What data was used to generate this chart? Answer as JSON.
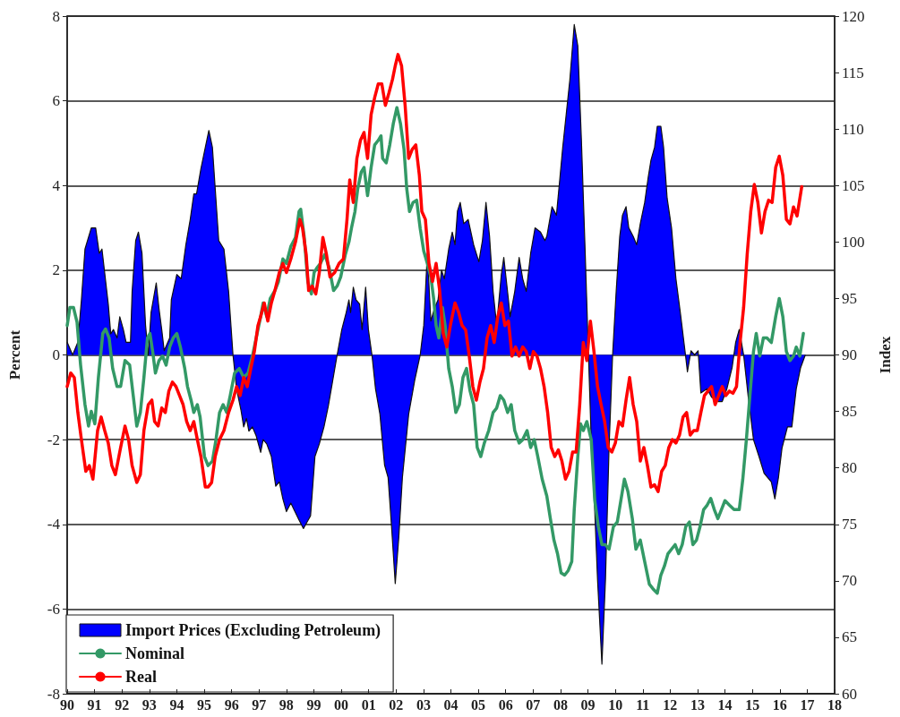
{
  "chart_data": {
    "type": "line",
    "ylabel": "Percent",
    "y2label": "Index",
    "xlim": [
      1990,
      2018
    ],
    "xticks": [
      {
        "value": 1990,
        "label": "90"
      },
      {
        "value": 1991,
        "label": "91"
      },
      {
        "value": 1992,
        "label": "92"
      },
      {
        "value": 1993,
        "label": "93"
      },
      {
        "value": 1994,
        "label": "94"
      },
      {
        "value": 1995,
        "label": "95"
      },
      {
        "value": 1996,
        "label": "96"
      },
      {
        "value": 1997,
        "label": "97"
      },
      {
        "value": 1998,
        "label": "98"
      },
      {
        "value": 1999,
        "label": "99"
      },
      {
        "value": 2000,
        "label": "00"
      },
      {
        "value": 2001,
        "label": "01"
      },
      {
        "value": 2002,
        "label": "02"
      },
      {
        "value": 2003,
        "label": "03"
      },
      {
        "value": 2004,
        "label": "04"
      },
      {
        "value": 2005,
        "label": "05"
      },
      {
        "value": 2006,
        "label": "06"
      },
      {
        "value": 2007,
        "label": "07"
      },
      {
        "value": 2008,
        "label": "08"
      },
      {
        "value": 2009,
        "label": "09"
      },
      {
        "value": 2010,
        "label": "10"
      },
      {
        "value": 2011,
        "label": "11"
      },
      {
        "value": 2012,
        "label": "12"
      },
      {
        "value": 2013,
        "label": "13"
      },
      {
        "value": 2014,
        "label": "14"
      },
      {
        "value": 2015,
        "label": "15"
      },
      {
        "value": 2016,
        "label": "16"
      },
      {
        "value": 2017,
        "label": "17"
      },
      {
        "value": 2018,
        "label": "18"
      }
    ],
    "ylim": [
      -8,
      8
    ],
    "yticks": [
      -8,
      -6,
      -4,
      -2,
      0,
      2,
      4,
      6,
      8
    ],
    "y2lim": [
      60,
      120
    ],
    "y2ticks": [
      60,
      65,
      70,
      75,
      80,
      85,
      90,
      95,
      100,
      105,
      110,
      115,
      120
    ],
    "grid": "y",
    "legend": "bottom left",
    "marker": "none",
    "line_style": "solid",
    "series": [
      {
        "name": "Import Prices (Excluding Petroleum)",
        "type": "area",
        "color": "#0000ff",
        "axis": "y",
        "x": [
          1990.0,
          1990.2,
          1990.39,
          1990.52,
          1990.65,
          1990.88,
          1991.04,
          1991.17,
          1991.27,
          1991.5,
          1991.59,
          1991.69,
          1991.82,
          1991.92,
          1992.05,
          1992.15,
          1992.31,
          1992.37,
          1992.5,
          1992.6,
          1992.73,
          1992.86,
          1992.96,
          1993.06,
          1993.25,
          1993.35,
          1993.45,
          1993.54,
          1993.74,
          1993.8,
          1994.0,
          1994.16,
          1994.33,
          1994.49,
          1994.62,
          1994.72,
          1994.88,
          1995.04,
          1995.17,
          1995.3,
          1995.53,
          1995.72,
          1995.89,
          1996.05,
          1996.18,
          1996.34,
          1996.44,
          1996.54,
          1996.63,
          1996.76,
          1996.89,
          1997.06,
          1997.15,
          1997.28,
          1997.45,
          1997.61,
          1997.74,
          1997.87,
          1998.0,
          1998.16,
          1998.46,
          1998.62,
          1998.88,
          1999.04,
          1999.2,
          1999.37,
          1999.53,
          1999.69,
          1999.85,
          2000.02,
          2000.18,
          2000.28,
          2000.34,
          2000.44,
          2000.54,
          2000.67,
          2000.76,
          2000.89,
          2000.99,
          2001.12,
          2001.25,
          2001.41,
          2001.58,
          2001.71,
          2001.84,
          2001.97,
          2002.1,
          2002.23,
          2002.46,
          2002.68,
          2002.88,
          2003.01,
          2003.14,
          2003.27,
          2003.4,
          2003.53,
          2003.66,
          2003.76,
          2003.92,
          2004.05,
          2004.15,
          2004.24,
          2004.34,
          2004.47,
          2004.63,
          2004.83,
          2005.02,
          2005.15,
          2005.28,
          2005.41,
          2005.54,
          2005.67,
          2005.84,
          2005.93,
          2006.1,
          2006.16,
          2006.33,
          2006.49,
          2006.62,
          2006.75,
          2006.91,
          2007.07,
          2007.27,
          2007.43,
          2007.5,
          2007.69,
          2007.85,
          2007.98,
          2008.08,
          2008.21,
          2008.34,
          2008.5,
          2008.63,
          2008.76,
          2008.89,
          2009.02,
          2009.12,
          2009.25,
          2009.35,
          2009.51,
          2009.64,
          2009.77,
          2009.9,
          2010.03,
          2010.16,
          2010.26,
          2010.39,
          2010.49,
          2010.65,
          2010.78,
          2010.91,
          2011.07,
          2011.2,
          2011.3,
          2011.43,
          2011.53,
          2011.66,
          2011.76,
          2011.89,
          2012.05,
          2012.21,
          2012.37,
          2012.54,
          2012.63,
          2012.76,
          2012.89,
          2013.02,
          2013.12,
          2013.35,
          2013.51,
          2013.74,
          2013.9,
          2014.07,
          2014.26,
          2014.39,
          2014.52,
          2014.68,
          2014.85,
          2015.04,
          2015.24,
          2015.43,
          2015.56,
          2015.69,
          2015.82,
          2015.95,
          2016.08,
          2016.28,
          2016.44,
          2016.6,
          2016.76,
          2016.93
        ],
        "values": [
          0.3,
          0,
          0.3,
          1.3,
          2.5,
          3.0,
          3.0,
          2.4,
          2.5,
          1.2,
          0.5,
          0.6,
          0.4,
          0.9,
          0.6,
          0.3,
          0.3,
          1.5,
          2.7,
          2.9,
          2.4,
          0.7,
          0,
          1.0,
          1.7,
          1.1,
          0.6,
          0.1,
          0.4,
          1.3,
          1.9,
          1.8,
          2.6,
          3.2,
          3.8,
          3.8,
          4.4,
          4.9,
          5.3,
          4.9,
          2.7,
          2.5,
          1.5,
          0,
          -0.8,
          -1.3,
          -1.7,
          -1.5,
          -1.8,
          -1.7,
          -1.9,
          -2.3,
          -2.0,
          -2.1,
          -2.4,
          -3.1,
          -3.0,
          -3.4,
          -3.7,
          -3.5,
          -3.9,
          -4.1,
          -3.8,
          -2.4,
          -2.1,
          -1.7,
          -1.2,
          -0.6,
          0,
          0.6,
          1.0,
          1.3,
          1.0,
          1.6,
          1.3,
          1.2,
          0.6,
          1.6,
          0.6,
          0,
          -0.8,
          -1.4,
          -2.6,
          -2.9,
          -4.1,
          -5.4,
          -4.3,
          -2.9,
          -1.4,
          -0.6,
          0,
          0.7,
          2.4,
          0.8,
          1.1,
          1.3,
          2.0,
          1.8,
          2.5,
          2.9,
          2.6,
          3.4,
          3.6,
          3.1,
          3.2,
          2.6,
          2.2,
          2.7,
          3.6,
          2.8,
          1.5,
          0.7,
          1.9,
          2.3,
          1.3,
          0.9,
          1.5,
          2.3,
          1.8,
          1.5,
          2.4,
          3.0,
          2.9,
          2.7,
          2.8,
          3.5,
          3.3,
          4.2,
          4.9,
          5.7,
          6.5,
          7.8,
          7.3,
          5.1,
          2.6,
          0,
          -2.0,
          -3.7,
          -5.3,
          -7.3,
          -5.3,
          -2.2,
          0,
          1.5,
          2.8,
          3.3,
          3.5,
          3.0,
          2.8,
          2.6,
          3.1,
          3.6,
          4.2,
          4.6,
          4.9,
          5.4,
          5.4,
          4.9,
          3.7,
          3.0,
          1.8,
          1.0,
          0.1,
          -0.4,
          0.1,
          0,
          0.1,
          -0.9,
          -0.8,
          -1.0,
          -1.1,
          -1.1,
          -0.8,
          -0.3,
          0.3,
          0.6,
          0,
          -1.0,
          -2.0,
          -2.4,
          -2.8,
          -2.9,
          -3.0,
          -3.4,
          -2.9,
          -2.2,
          -1.7,
          -1.7,
          -0.8,
          -0.3,
          0
        ]
      },
      {
        "name": "Nominal",
        "type": "line",
        "color": "#339966",
        "axis": "y2",
        "x": [
          1990.0,
          1990.1,
          1990.23,
          1990.36,
          1990.49,
          1990.65,
          1990.78,
          1990.88,
          1991.01,
          1991.14,
          1991.3,
          1991.4,
          1991.53,
          1991.66,
          1991.82,
          1991.95,
          1992.11,
          1992.28,
          1992.41,
          1992.54,
          1992.67,
          1992.8,
          1992.93,
          1993.02,
          1993.12,
          1993.22,
          1993.35,
          1993.48,
          1993.61,
          1993.74,
          1993.87,
          1994.0,
          1994.13,
          1994.29,
          1994.39,
          1994.52,
          1994.62,
          1994.75,
          1994.85,
          1995.01,
          1995.14,
          1995.3,
          1995.43,
          1995.56,
          1995.69,
          1995.82,
          1995.95,
          1996.11,
          1996.28,
          1996.44,
          1996.6,
          1996.76,
          1996.93,
          1997.06,
          1997.15,
          1997.28,
          1997.41,
          1997.58,
          1997.71,
          1997.87,
          1998.0,
          1998.16,
          1998.33,
          1998.46,
          1998.52,
          1998.65,
          1998.78,
          1998.91,
          1999.01,
          1999.11,
          1999.24,
          1999.4,
          1999.56,
          1999.72,
          1999.85,
          1999.98,
          2000.15,
          2000.28,
          2000.37,
          2000.5,
          2000.6,
          2000.73,
          2000.83,
          2000.96,
          2001.09,
          2001.22,
          2001.35,
          2001.45,
          2001.51,
          2001.64,
          2001.77,
          2001.9,
          2002.03,
          2002.16,
          2002.29,
          2002.39,
          2002.49,
          2002.62,
          2002.75,
          2002.88,
          2003.01,
          2003.14,
          2003.27,
          2003.37,
          2003.46,
          2003.56,
          2003.69,
          2003.79,
          2003.92,
          2004.05,
          2004.18,
          2004.31,
          2004.44,
          2004.57,
          2004.7,
          2004.83,
          2004.96,
          2005.09,
          2005.22,
          2005.38,
          2005.54,
          2005.67,
          2005.8,
          2005.93,
          2006.07,
          2006.2,
          2006.33,
          2006.49,
          2006.62,
          2006.78,
          2006.91,
          2007.04,
          2007.17,
          2007.33,
          2007.5,
          2007.63,
          2007.76,
          2007.89,
          2008.02,
          2008.15,
          2008.28,
          2008.41,
          2008.5,
          2008.63,
          2008.73,
          2008.83,
          2008.96,
          2009.12,
          2009.25,
          2009.38,
          2009.51,
          2009.64,
          2009.77,
          2009.93,
          2010.07,
          2010.2,
          2010.33,
          2010.46,
          2010.62,
          2010.75,
          2010.91,
          2011.07,
          2011.24,
          2011.37,
          2011.53,
          2011.66,
          2011.79,
          2011.92,
          2012.05,
          2012.18,
          2012.31,
          2012.44,
          2012.57,
          2012.7,
          2012.83,
          2012.96,
          2013.09,
          2013.22,
          2013.35,
          2013.48,
          2013.61,
          2013.74,
          2013.87,
          2014.0,
          2014.16,
          2014.33,
          2014.52,
          2014.65,
          2014.78,
          2014.91,
          2015.04,
          2015.14,
          2015.27,
          2015.4,
          2015.53,
          2015.69,
          2015.85,
          2015.98,
          2016.11,
          2016.24,
          2016.37,
          2016.5,
          2016.6,
          2016.73,
          2016.86
        ],
        "values": [
          92.6,
          94.2,
          94.2,
          92.9,
          89.1,
          85.6,
          83.7,
          85.0,
          83.9,
          88.0,
          91.9,
          92.3,
          91.5,
          88.8,
          87.2,
          87.2,
          89.5,
          89.1,
          86.4,
          83.7,
          84.9,
          88.0,
          91.5,
          91.9,
          90.3,
          88.4,
          89.5,
          89.9,
          89.1,
          90.7,
          91.5,
          91.9,
          90.7,
          88.8,
          87.2,
          86.0,
          84.9,
          85.6,
          84.5,
          81.0,
          80.2,
          80.6,
          82.5,
          84.9,
          85.6,
          84.9,
          86.4,
          88.4,
          88.8,
          88.0,
          88.4,
          89.9,
          91.9,
          93.4,
          94.6,
          93.4,
          95.0,
          95.7,
          96.5,
          98.5,
          98.1,
          99.6,
          100.4,
          102.7,
          102.9,
          100.4,
          96.5,
          95.4,
          97.3,
          97.7,
          98.1,
          98.9,
          97.7,
          95.7,
          96.1,
          96.9,
          98.9,
          100.0,
          101.2,
          102.7,
          104.7,
          106.2,
          106.6,
          104.1,
          106.6,
          108.6,
          109.0,
          109.4,
          107.4,
          107.0,
          108.6,
          110.5,
          111.9,
          110.5,
          108.2,
          104.7,
          102.7,
          103.5,
          103.7,
          101.2,
          99.2,
          98.1,
          96.9,
          95.0,
          92.6,
          91.5,
          94.2,
          92.6,
          88.8,
          87.2,
          84.9,
          85.6,
          88.0,
          88.8,
          86.8,
          85.6,
          81.8,
          81.0,
          82.2,
          83.3,
          84.9,
          85.3,
          86.4,
          86.0,
          84.9,
          85.6,
          83.3,
          82.2,
          82.5,
          83.3,
          81.8,
          82.5,
          81.0,
          79.0,
          77.5,
          75.5,
          73.6,
          72.4,
          70.7,
          70.5,
          70.9,
          71.7,
          76.3,
          81.0,
          83.9,
          83.3,
          84.1,
          82.5,
          77.1,
          74.8,
          73.2,
          73.2,
          72.8,
          74.8,
          75.2,
          77.1,
          79.0,
          77.9,
          75.5,
          72.8,
          73.6,
          71.7,
          69.7,
          69.3,
          68.9,
          70.5,
          71.3,
          72.4,
          72.8,
          73.2,
          72.4,
          73.2,
          74.8,
          75.2,
          73.2,
          73.6,
          74.8,
          76.3,
          76.7,
          77.3,
          76.3,
          75.5,
          76.3,
          77.1,
          76.7,
          76.3,
          76.3,
          79.0,
          82.5,
          86.4,
          90.3,
          91.9,
          89.9,
          91.5,
          91.5,
          91.1,
          93.4,
          95.0,
          93.4,
          90.3,
          89.5,
          89.9,
          90.7,
          89.9,
          91.9
        ]
      },
      {
        "name": "Real",
        "type": "line",
        "color": "#ff0000",
        "axis": "y2",
        "x": [
          1990.0,
          1990.13,
          1990.26,
          1990.39,
          1990.52,
          1990.68,
          1990.81,
          1990.94,
          1991.11,
          1991.24,
          1991.37,
          1991.5,
          1991.63,
          1991.76,
          1991.95,
          1992.11,
          1992.24,
          1992.37,
          1992.54,
          1992.67,
          1992.8,
          1992.96,
          1993.09,
          1993.19,
          1993.32,
          1993.45,
          1993.58,
          1993.71,
          1993.84,
          1993.97,
          1994.1,
          1994.23,
          1994.36,
          1994.49,
          1994.62,
          1994.75,
          1994.88,
          1995.04,
          1995.14,
          1995.27,
          1995.4,
          1995.56,
          1995.72,
          1995.89,
          1996.05,
          1996.18,
          1996.31,
          1996.44,
          1996.57,
          1996.7,
          1996.83,
          1996.96,
          1997.06,
          1997.19,
          1997.32,
          1997.45,
          1997.58,
          1997.74,
          1997.87,
          1998.0,
          1998.16,
          1998.33,
          1998.49,
          1998.59,
          1998.72,
          1998.81,
          1998.94,
          1999.07,
          1999.2,
          1999.33,
          1999.46,
          1999.59,
          1999.76,
          1999.92,
          2000.08,
          2000.21,
          2000.31,
          2000.44,
          2000.57,
          2000.7,
          2000.83,
          2000.96,
          2001.09,
          2001.22,
          2001.35,
          2001.48,
          2001.61,
          2001.74,
          2001.87,
          2001.97,
          2002.07,
          2002.2,
          2002.33,
          2002.46,
          2002.59,
          2002.72,
          2002.85,
          2002.94,
          2003.07,
          2003.2,
          2003.33,
          2003.46,
          2003.59,
          2003.72,
          2003.85,
          2003.98,
          2004.15,
          2004.28,
          2004.41,
          2004.54,
          2004.67,
          2004.8,
          2004.93,
          2005.06,
          2005.19,
          2005.32,
          2005.45,
          2005.58,
          2005.71,
          2005.84,
          2005.97,
          2006.1,
          2006.23,
          2006.36,
          2006.49,
          2006.62,
          2006.75,
          2006.88,
          2007.01,
          2007.14,
          2007.27,
          2007.4,
          2007.53,
          2007.66,
          2007.79,
          2007.92,
          2008.05,
          2008.18,
          2008.31,
          2008.44,
          2008.57,
          2008.7,
          2008.83,
          2008.96,
          2009.09,
          2009.22,
          2009.35,
          2009.48,
          2009.61,
          2009.74,
          2009.87,
          2010.0,
          2010.13,
          2010.26,
          2010.39,
          2010.52,
          2010.65,
          2010.78,
          2010.91,
          2011.04,
          2011.17,
          2011.3,
          2011.43,
          2011.56,
          2011.69,
          2011.82,
          2011.95,
          2012.08,
          2012.21,
          2012.34,
          2012.47,
          2012.6,
          2012.73,
          2012.86,
          2012.99,
          2013.12,
          2013.25,
          2013.38,
          2013.51,
          2013.64,
          2013.77,
          2013.9,
          2014.03,
          2014.16,
          2014.29,
          2014.42,
          2014.55,
          2014.68,
          2014.81,
          2014.94,
          2015.07,
          2015.2,
          2015.33,
          2015.46,
          2015.59,
          2015.72,
          2015.85,
          2015.98,
          2016.11,
          2016.24,
          2016.37,
          2016.5,
          2016.63,
          2016.8
        ],
        "values": [
          87.2,
          88.4,
          88.0,
          84.9,
          82.5,
          79.7,
          80.2,
          79.0,
          83.3,
          84.5,
          83.3,
          82.2,
          80.2,
          79.4,
          81.8,
          83.7,
          82.5,
          80.2,
          78.7,
          79.4,
          83.3,
          85.6,
          86.0,
          84.1,
          83.7,
          85.3,
          84.9,
          86.8,
          87.6,
          87.2,
          86.4,
          85.6,
          84.1,
          83.3,
          84.1,
          82.5,
          81.0,
          78.3,
          78.3,
          78.7,
          81.0,
          82.5,
          83.3,
          84.9,
          86.0,
          87.2,
          86.4,
          88.0,
          87.2,
          88.8,
          90.3,
          92.6,
          93.4,
          94.6,
          93.0,
          94.6,
          95.7,
          97.3,
          98.1,
          97.3,
          98.5,
          100.0,
          102.0,
          101.2,
          98.9,
          95.7,
          96.1,
          95.4,
          97.3,
          100.4,
          98.9,
          96.9,
          97.3,
          98.1,
          98.5,
          102.0,
          105.5,
          103.5,
          107.4,
          109.0,
          109.7,
          107.4,
          111.3,
          112.8,
          114.0,
          114.0,
          112.1,
          113.2,
          114.4,
          115.6,
          116.6,
          115.6,
          112.1,
          107.4,
          108.2,
          108.6,
          105.9,
          102.7,
          102.0,
          98.1,
          96.5,
          98.1,
          95.7,
          91.9,
          90.7,
          92.6,
          94.6,
          93.8,
          92.6,
          92.2,
          89.9,
          87.2,
          86.0,
          87.6,
          88.8,
          91.5,
          92.6,
          91.1,
          93.4,
          94.6,
          92.6,
          93.0,
          89.9,
          90.7,
          89.9,
          90.7,
          90.3,
          88.8,
          90.3,
          89.9,
          88.8,
          87.2,
          84.9,
          81.8,
          81.0,
          81.6,
          80.6,
          79.0,
          79.7,
          81.4,
          81.4,
          85.6,
          91.1,
          89.5,
          93.0,
          90.3,
          87.2,
          85.6,
          84.1,
          81.8,
          81.4,
          82.2,
          84.1,
          83.7,
          86.0,
          88.0,
          85.6,
          84.1,
          80.6,
          81.8,
          80.2,
          78.3,
          78.5,
          77.9,
          79.7,
          80.2,
          81.8,
          82.5,
          82.2,
          82.9,
          84.5,
          84.9,
          82.9,
          83.3,
          83.3,
          84.9,
          86.4,
          86.8,
          87.2,
          85.6,
          86.4,
          87.2,
          86.4,
          86.8,
          86.6,
          87.2,
          91.1,
          94.2,
          98.9,
          102.7,
          105.1,
          103.5,
          100.8,
          102.7,
          103.7,
          103.5,
          106.6,
          107.6,
          105.9,
          102.0,
          101.6,
          103.1,
          102.3,
          104.9
        ]
      }
    ]
  }
}
